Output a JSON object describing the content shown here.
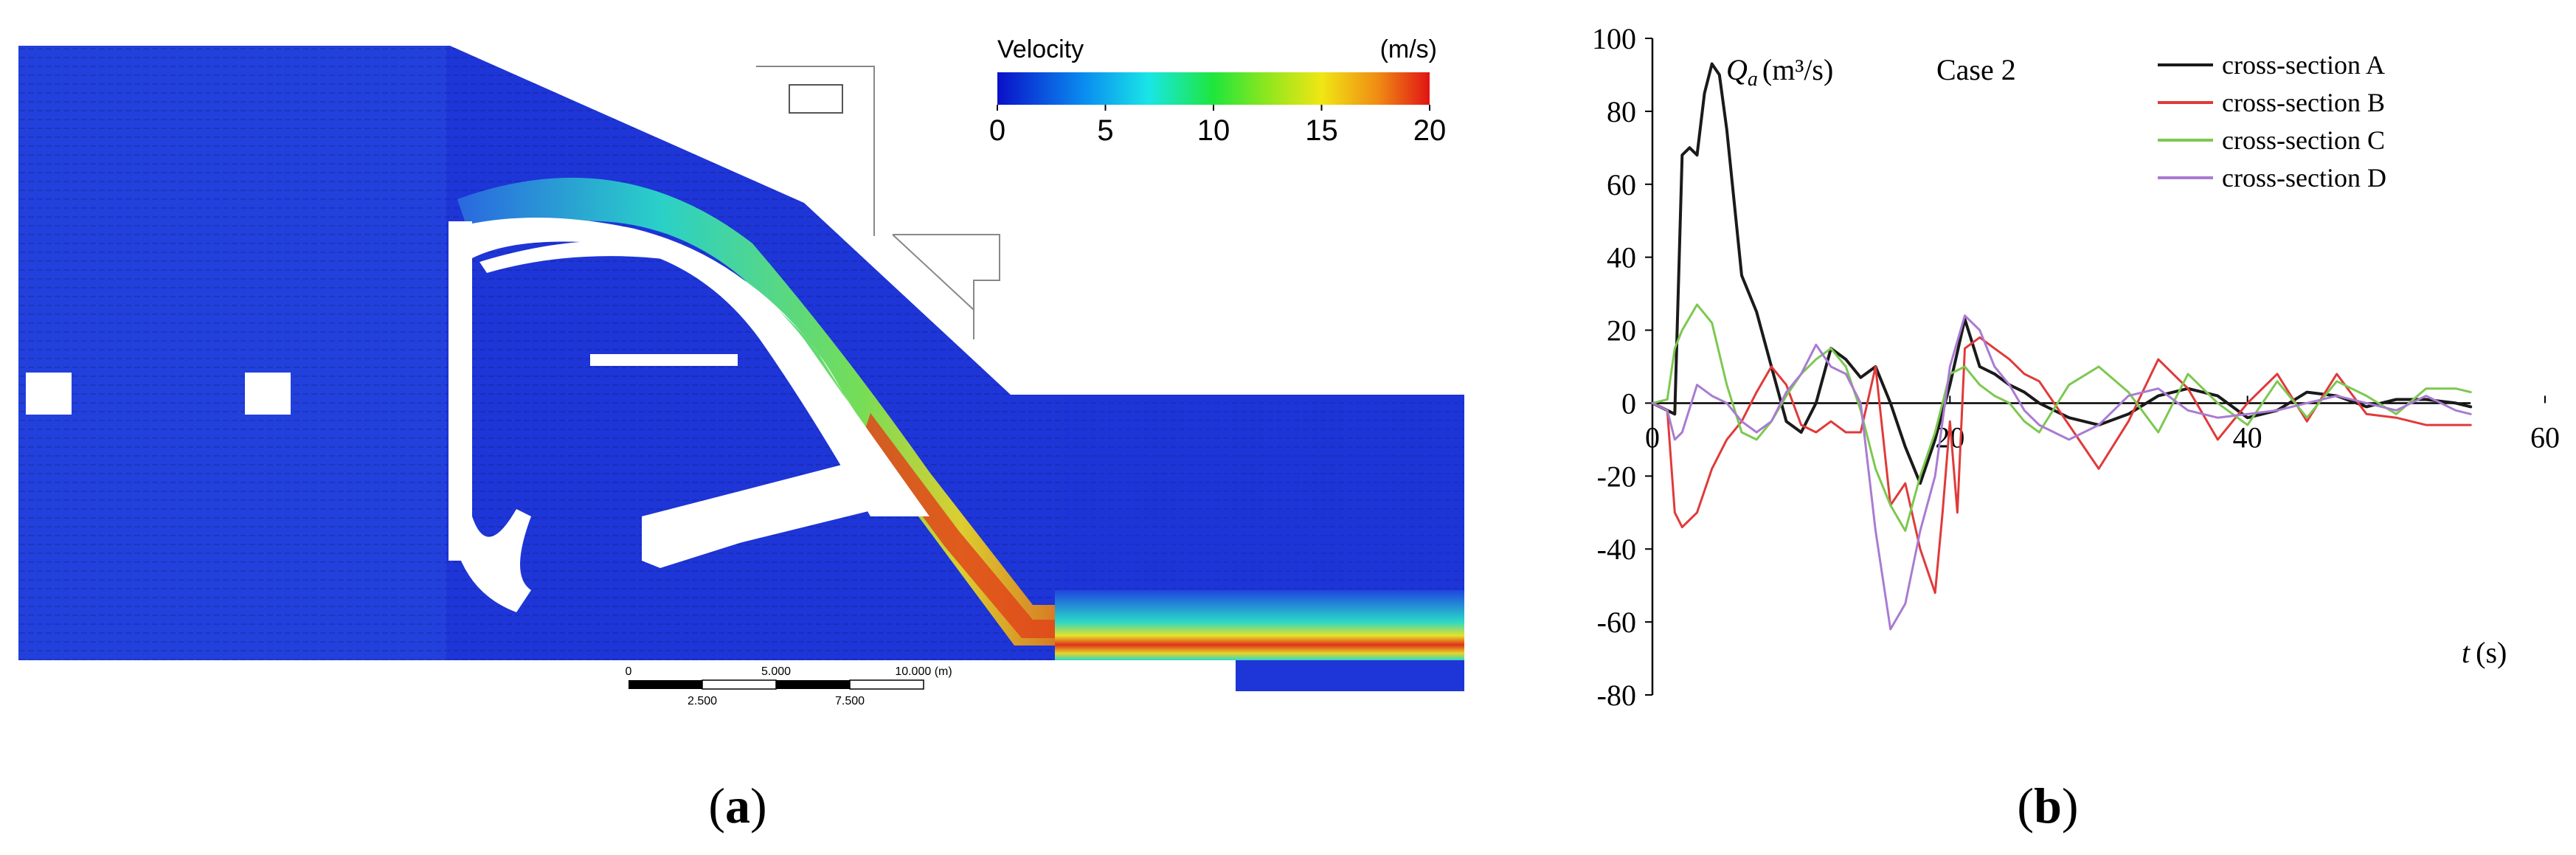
{
  "panel_a": {
    "label_open": "(",
    "label_letter": "a",
    "label_close": ")",
    "colorbar": {
      "title": "Velocity",
      "unit": "(m/s)",
      "ticks": [
        "0",
        "5",
        "10",
        "15",
        "20"
      ],
      "min": 0,
      "max": 20
    },
    "scale_bar": {
      "top_labels": [
        "0",
        "5.000",
        "10.000 (m)"
      ],
      "bottom_labels": [
        "2.500",
        "7.500"
      ]
    },
    "colors": {
      "cold": "#1a2bd8",
      "mid": "#19e6b0",
      "hot": "#e0321a"
    }
  },
  "panel_b": {
    "label_open": "(",
    "label_letter": "b",
    "label_close": ")",
    "ylabel_symbol": "Q",
    "ylabel_sub": "a",
    "ylabel_unit": "(m³/s)",
    "case_label": "Case 2",
    "xlabel_symbol": "t",
    "xlabel_unit": "(s)"
  },
  "chart_data": {
    "type": "line",
    "title": "Case 2",
    "xlabel": "t (s)",
    "ylabel": "Qa (m³/s)",
    "xlim": [
      0,
      60
    ],
    "ylim": [
      -80,
      100
    ],
    "x_ticks": [
      "0",
      "20",
      "40",
      "60"
    ],
    "y_ticks": [
      "100",
      "80",
      "60",
      "40",
      "20",
      "0",
      "-20",
      "-40",
      "-60",
      "-80"
    ],
    "legend_position": "top-right",
    "series": [
      {
        "name": "cross-section A",
        "color": "#1a1a1a",
        "x": [
          0,
          1,
          1.5,
          2,
          2.5,
          3,
          3.5,
          4,
          4.5,
          5,
          5.5,
          6,
          7,
          8,
          9,
          10,
          11,
          12,
          13,
          14,
          15,
          16,
          17,
          18,
          19,
          20,
          21,
          22,
          23,
          24,
          25,
          26,
          28,
          30,
          32,
          34,
          36,
          38,
          40,
          42,
          44,
          46,
          48,
          50,
          52,
          54,
          55
        ],
        "y": [
          0,
          -2,
          -3,
          68,
          70,
          68,
          85,
          93,
          90,
          75,
          55,
          35,
          25,
          10,
          -5,
          -8,
          0,
          15,
          12,
          7,
          10,
          0,
          -12,
          -22,
          -10,
          5,
          23,
          10,
          8,
          5,
          3,
          0,
          -4,
          -6,
          -3,
          2,
          4,
          2,
          -4,
          -2,
          3,
          2,
          -1,
          1,
          1,
          0,
          -1
        ]
      },
      {
        "name": "cross-section B",
        "color": "#e03a3a",
        "x": [
          0,
          1,
          1.5,
          2,
          3,
          4,
          5,
          6,
          7,
          8,
          9,
          10,
          11,
          12,
          13,
          14,
          15,
          16,
          17,
          18,
          19,
          19.5,
          20,
          20.5,
          21,
          22,
          23,
          24,
          25,
          26,
          28,
          30,
          32,
          34,
          36,
          38,
          40,
          42,
          44,
          46,
          48,
          50,
          52,
          54,
          55
        ],
        "y": [
          0,
          -2,
          -30,
          -34,
          -30,
          -18,
          -10,
          -5,
          3,
          10,
          5,
          -6,
          -8,
          -5,
          -8,
          -8,
          10,
          -28,
          -22,
          -40,
          -52,
          -30,
          -5,
          -30,
          15,
          18,
          15,
          12,
          8,
          6,
          -6,
          -18,
          -5,
          12,
          4,
          -10,
          0,
          8,
          -5,
          8,
          -3,
          -4,
          -6,
          -6,
          -6
        ]
      },
      {
        "name": "cross-section C",
        "color": "#7cc850",
        "x": [
          0,
          1,
          1.5,
          2,
          3,
          4,
          5,
          6,
          7,
          8,
          9,
          10,
          11,
          12,
          13,
          14,
          15,
          16,
          17,
          18,
          19,
          20,
          21,
          22,
          23,
          24,
          25,
          26,
          28,
          30,
          32,
          34,
          36,
          38,
          40,
          42,
          44,
          46,
          48,
          50,
          52,
          54,
          55
        ],
        "y": [
          0,
          1,
          15,
          20,
          27,
          22,
          5,
          -8,
          -10,
          -5,
          2,
          8,
          12,
          15,
          10,
          -2,
          -18,
          -28,
          -35,
          -20,
          -8,
          8,
          10,
          5,
          2,
          0,
          -5,
          -8,
          5,
          10,
          3,
          -8,
          8,
          0,
          -6,
          6,
          -4,
          6,
          2,
          -3,
          4,
          4,
          3
        ]
      },
      {
        "name": "cross-section D",
        "color": "#a97bd1",
        "x": [
          0,
          1,
          1.5,
          2,
          3,
          4,
          5,
          6,
          7,
          8,
          9,
          10,
          11,
          12,
          13,
          14,
          15,
          16,
          17,
          18,
          19,
          20,
          21,
          22,
          23,
          24,
          25,
          26,
          28,
          30,
          32,
          34,
          36,
          38,
          40,
          42,
          44,
          46,
          48,
          50,
          52,
          54,
          55
        ],
        "y": [
          0,
          -2,
          -10,
          -8,
          5,
          2,
          0,
          -5,
          -8,
          -5,
          3,
          8,
          16,
          10,
          8,
          0,
          -35,
          -62,
          -55,
          -35,
          -20,
          10,
          24,
          20,
          10,
          5,
          -2,
          -6,
          -10,
          -6,
          2,
          4,
          -2,
          -4,
          -3,
          -2,
          0,
          2,
          0,
          -2,
          2,
          -2,
          -3
        ]
      }
    ]
  }
}
